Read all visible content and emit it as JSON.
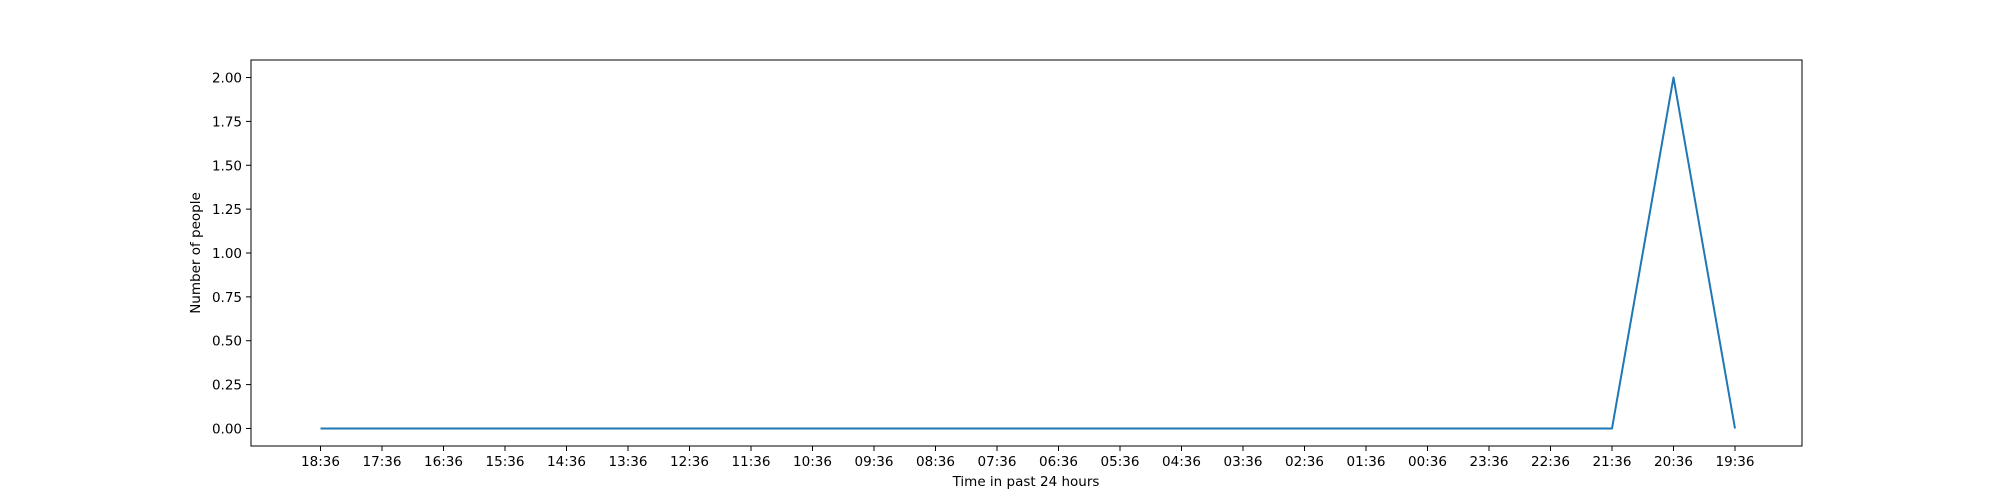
{
  "chart_data": {
    "type": "line",
    "title": "",
    "xlabel": "Time in past 24 hours",
    "ylabel": "Number of people",
    "x": [
      "18:36",
      "17:36",
      "16:36",
      "15:36",
      "14:36",
      "13:36",
      "12:36",
      "11:36",
      "10:36",
      "09:36",
      "08:36",
      "07:36",
      "06:36",
      "05:36",
      "04:36",
      "03:36",
      "02:36",
      "01:36",
      "00:36",
      "23:36",
      "22:36",
      "21:36",
      "20:36",
      "19:36"
    ],
    "series": [
      {
        "values": [
          0,
          0,
          0,
          0,
          0,
          0,
          0,
          0,
          0,
          0,
          0,
          0,
          0,
          0,
          0,
          0,
          0,
          0,
          0,
          0,
          0,
          0,
          2,
          0
        ],
        "color": "#1f77b4"
      }
    ],
    "yticks": [
      0.0,
      0.25,
      0.5,
      0.75,
      1.0,
      1.25,
      1.5,
      1.75,
      2.0
    ],
    "ytick_labels": [
      "0.00",
      "0.25",
      "0.50",
      "0.75",
      "1.00",
      "1.25",
      "1.50",
      "1.75",
      "2.00"
    ],
    "ylim": [
      -0.1,
      2.1
    ],
    "grid": false,
    "legend": "none"
  }
}
